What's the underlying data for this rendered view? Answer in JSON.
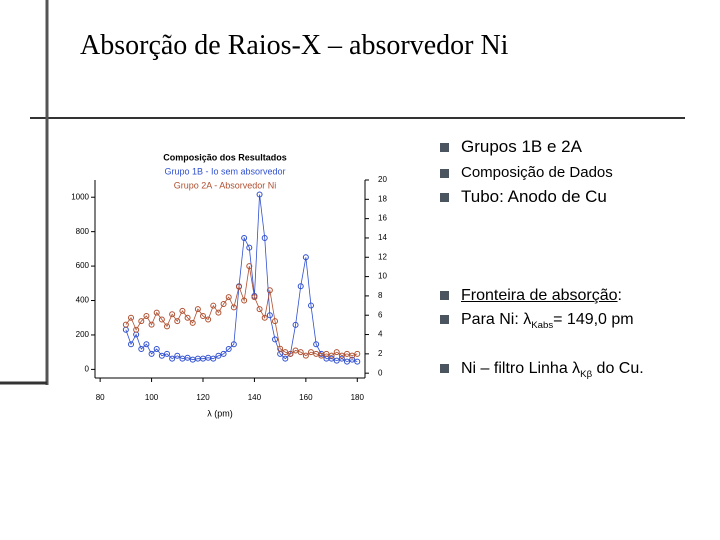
{
  "title": "Absorção de Raios-X – absorvedor Ni",
  "bullets": [
    {
      "text": "Grupos 1B e 2A"
    },
    {
      "text": "Composição de Dados"
    },
    {
      "text": "Tubo: Anodo de Cu"
    },
    {
      "text": "Fronteira de absorção",
      "after": ":"
    },
    {
      "text": "Para Ni: λ",
      "sub": "Kabs",
      "after": "= 149,0 pm"
    },
    {
      "text": "Ni – filtro Linha λ",
      "sub": "Kβ",
      "after": " do Cu."
    }
  ],
  "chart_data": {
    "type": "scatter",
    "title": "Composição dos Resultados",
    "xlabel": "λ (pm)",
    "x": [
      90,
      92,
      94,
      96,
      98,
      100,
      102,
      104,
      106,
      108,
      110,
      112,
      114,
      116,
      118,
      120,
      122,
      124,
      126,
      128,
      130,
      132,
      134,
      136,
      138,
      140,
      142,
      144,
      146,
      148,
      150,
      152,
      154,
      156,
      158,
      160,
      162,
      164,
      166,
      168,
      170,
      172,
      174,
      176,
      178,
      180
    ],
    "series": [
      {
        "name": "Grupo 1B - Io sem absorvedor",
        "color": "#3050d0",
        "axis": "y2",
        "values": [
          4.5,
          3,
          4,
          2.5,
          3,
          2,
          2.5,
          1.8,
          2,
          1.5,
          1.8,
          1.5,
          1.6,
          1.4,
          1.5,
          1.5,
          1.6,
          1.5,
          1.8,
          2,
          2.5,
          3,
          9,
          14,
          13,
          8,
          18.5,
          14,
          6,
          3.5,
          2,
          1.5,
          2,
          5,
          9,
          12,
          7,
          3,
          2,
          1.5,
          1.5,
          1.3,
          1.5,
          1.2,
          1.4,
          1.2
        ]
      },
      {
        "name": "Grupo 2A - Absorvedor Ni",
        "color": "#b05030",
        "values": [
          260,
          300,
          230,
          280,
          310,
          260,
          330,
          290,
          250,
          320,
          280,
          340,
          300,
          270,
          350,
          310,
          290,
          370,
          330,
          380,
          420,
          360,
          480,
          400,
          600,
          420,
          350,
          300,
          460,
          280,
          120,
          100,
          90,
          110,
          100,
          80,
          100,
          90,
          80,
          90,
          80,
          100,
          80,
          90,
          80,
          90
        ]
      }
    ],
    "xlim": [
      78,
      183
    ],
    "xticks": [
      80,
      100,
      120,
      140,
      160,
      180
    ],
    "ylim": [
      -50,
      1100
    ],
    "yticks": [
      0,
      200,
      400,
      600,
      800,
      1000
    ],
    "y2lim": [
      -0.5,
      20
    ],
    "y2ticks": [
      0,
      2,
      4,
      6,
      8,
      10,
      12,
      14,
      16,
      18,
      20
    ]
  }
}
